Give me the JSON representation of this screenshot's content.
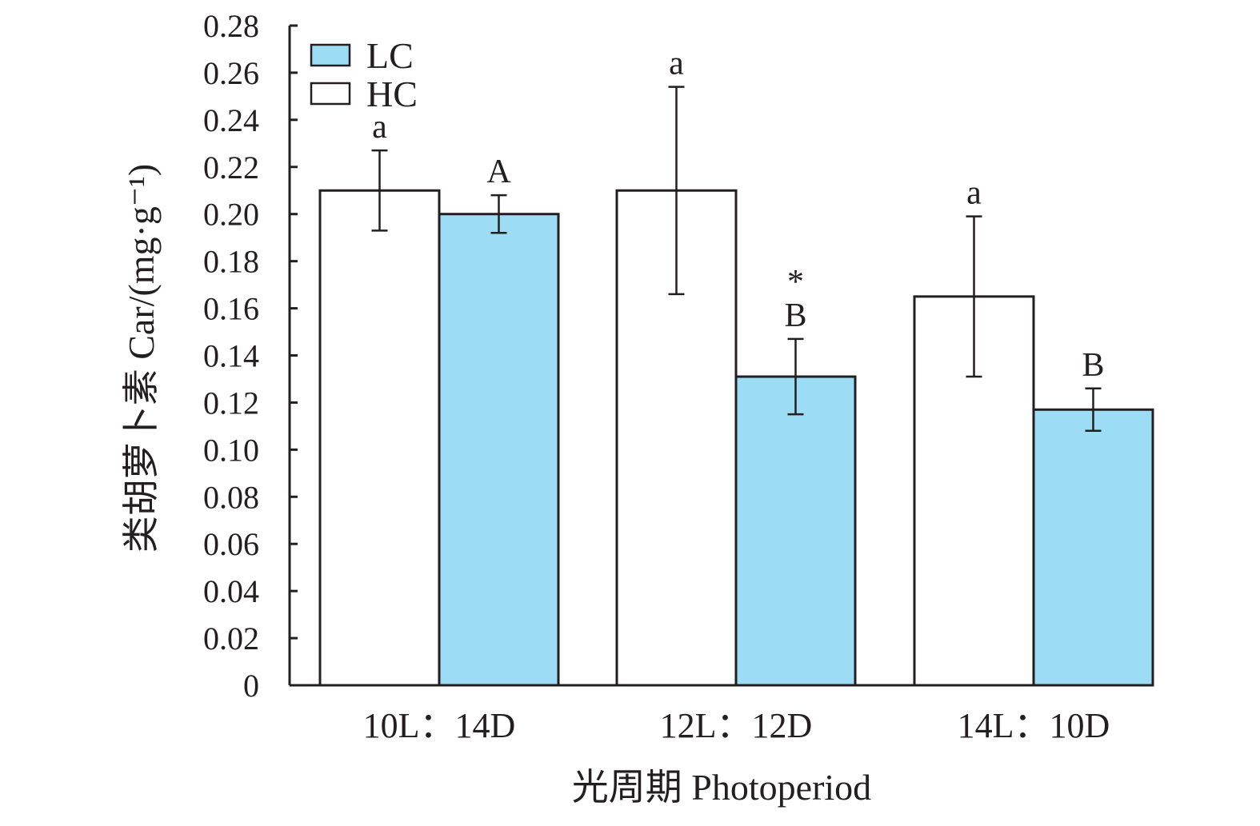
{
  "chart_data": {
    "type": "bar",
    "title": "",
    "xlabel": "光周期 Photoperiod",
    "ylabel": "类胡萝卜素 Car/(mg·g⁻¹)",
    "ylim": [
      0,
      0.28
    ],
    "yticks": [
      "0",
      "0.02",
      "0.04",
      "0.06",
      "0.08",
      "0.10",
      "0.12",
      "0.14",
      "0.16",
      "0.18",
      "0.20",
      "0.22",
      "0.24",
      "0.26",
      "0.28"
    ],
    "categories": [
      "10L：14D",
      "12L：12D",
      "14L：10D"
    ],
    "series": [
      {
        "name": "HC",
        "color": "#ffffff",
        "values": [
          0.21,
          0.21,
          0.165
        ],
        "error": [
          0.017,
          0.044,
          0.034
        ],
        "labels": [
          "a",
          "a",
          "a"
        ]
      },
      {
        "name": "LC",
        "color": "#9cdcf5",
        "values": [
          0.2,
          0.131,
          0.117
        ],
        "error": [
          0.008,
          0.016,
          0.009
        ],
        "labels": [
          "A",
          "B",
          "B"
        ],
        "markers": [
          "",
          "*",
          ""
        ]
      }
    ],
    "legend": {
      "position": "top-left",
      "order": [
        "LC",
        "HC"
      ]
    },
    "grid": false,
    "colors": {
      "axis": "#231f20",
      "lc_fill": "#9cdcf5",
      "hc_fill": "#ffffff"
    }
  }
}
